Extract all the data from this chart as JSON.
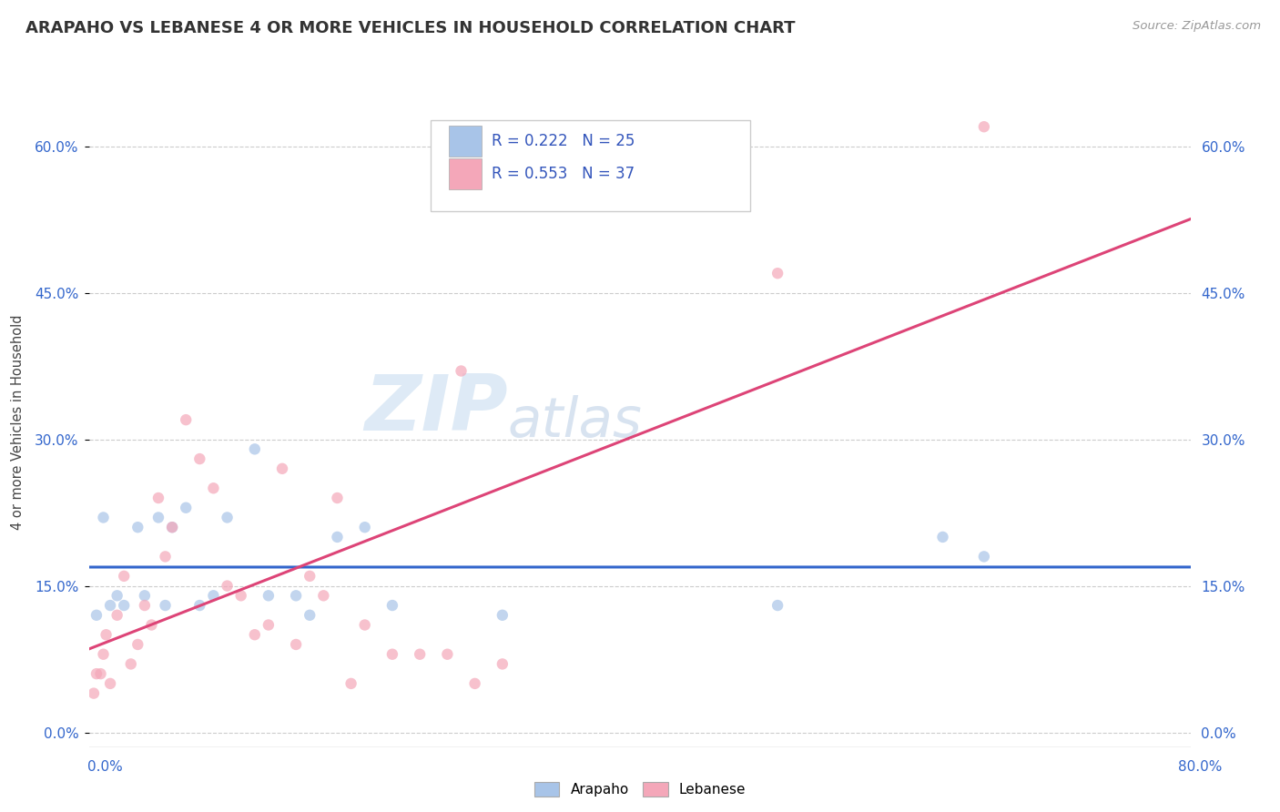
{
  "title": "ARAPAHO VS LEBANESE 4 OR MORE VEHICLES IN HOUSEHOLD CORRELATION CHART",
  "source_text": "Source: ZipAtlas.com",
  "ylabel": "4 or more Vehicles in Household",
  "xlim": [
    0.0,
    80.0
  ],
  "ylim": [
    -1.5,
    65.0
  ],
  "yticks": [
    0.0,
    15.0,
    30.0,
    45.0,
    60.0
  ],
  "ytick_labels": [
    "0.0%",
    "15.0%",
    "30.0%",
    "45.0%",
    "60.0%"
  ],
  "watermark_zip": "ZIP",
  "watermark_atlas": "atlas",
  "arapaho_color": "#a8c4e8",
  "lebanese_color": "#f4a7b9",
  "arapaho_line_color": "#3366cc",
  "lebanese_line_color": "#dd4477",
  "arapaho_R": 0.222,
  "arapaho_N": 25,
  "lebanese_R": 0.553,
  "lebanese_N": 37,
  "legend_label_color": "#3355bb",
  "arapaho_scatter_x": [
    0.5,
    1.0,
    1.5,
    2.0,
    2.5,
    3.5,
    4.0,
    5.0,
    5.5,
    6.0,
    7.0,
    8.0,
    9.0,
    10.0,
    12.0,
    13.0,
    15.0,
    16.0,
    18.0,
    20.0,
    22.0,
    30.0,
    50.0,
    62.0,
    65.0
  ],
  "arapaho_scatter_y": [
    12.0,
    22.0,
    13.0,
    14.0,
    13.0,
    21.0,
    14.0,
    22.0,
    13.0,
    21.0,
    23.0,
    13.0,
    14.0,
    22.0,
    29.0,
    14.0,
    14.0,
    12.0,
    20.0,
    21.0,
    13.0,
    12.0,
    13.0,
    20.0,
    18.0
  ],
  "lebanese_scatter_x": [
    0.3,
    0.5,
    0.8,
    1.0,
    1.2,
    1.5,
    2.0,
    2.5,
    3.0,
    3.5,
    4.0,
    4.5,
    5.0,
    5.5,
    6.0,
    7.0,
    8.0,
    9.0,
    10.0,
    11.0,
    12.0,
    13.0,
    14.0,
    15.0,
    16.0,
    17.0,
    18.0,
    19.0,
    20.0,
    22.0,
    24.0,
    26.0,
    27.0,
    28.0,
    30.0,
    50.0,
    65.0
  ],
  "lebanese_scatter_y": [
    4.0,
    6.0,
    6.0,
    8.0,
    10.0,
    5.0,
    12.0,
    16.0,
    7.0,
    9.0,
    13.0,
    11.0,
    24.0,
    18.0,
    21.0,
    32.0,
    28.0,
    25.0,
    15.0,
    14.0,
    10.0,
    11.0,
    27.0,
    9.0,
    16.0,
    14.0,
    24.0,
    5.0,
    11.0,
    8.0,
    8.0,
    8.0,
    37.0,
    5.0,
    7.0,
    47.0,
    62.0
  ],
  "background_color": "#ffffff",
  "grid_color": "#cccccc",
  "tick_color": "#3366cc"
}
